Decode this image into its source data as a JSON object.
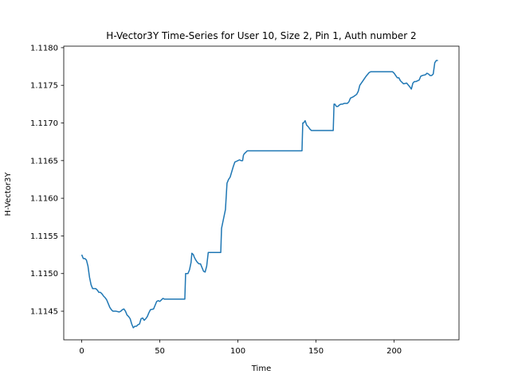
{
  "chart_data": {
    "type": "line",
    "title": "H-Vector3Y Time-Series for User 10, Size 2, Pin 1, Auth number 2",
    "xlabel": "Time",
    "ylabel": "H-Vector3Y",
    "xlim": [
      -11.5,
      241.5
    ],
    "ylim": [
      1.11412,
      1.11802
    ],
    "xticks": [
      0,
      50,
      100,
      150,
      200
    ],
    "yticks": [
      1.1145,
      1.115,
      1.1155,
      1.116,
      1.1165,
      1.117,
      1.1175,
      1.118
    ],
    "ytick_labels": [
      "1.1145",
      "1.1150",
      "1.1155",
      "1.1160",
      "1.1165",
      "1.1170",
      "1.1175",
      "1.1180"
    ],
    "grid": false,
    "series": [
      {
        "color": "#1f77b4",
        "points": [
          [
            0,
            1.11525
          ],
          [
            1,
            1.1152
          ],
          [
            2,
            1.1152
          ],
          [
            3,
            1.11518
          ],
          [
            4,
            1.1151
          ],
          [
            5,
            1.11495
          ],
          [
            6,
            1.11485
          ],
          [
            7,
            1.1148
          ],
          [
            8,
            1.1148
          ],
          [
            9,
            1.1148
          ],
          [
            10,
            1.11478
          ],
          [
            11,
            1.11475
          ],
          [
            12,
            1.11475
          ],
          [
            13,
            1.11473
          ],
          [
            14,
            1.1147
          ],
          [
            15,
            1.11468
          ],
          [
            16,
            1.11465
          ],
          [
            17,
            1.1146
          ],
          [
            18,
            1.11455
          ],
          [
            19,
            1.11452
          ],
          [
            20,
            1.1145
          ],
          [
            22,
            1.1145
          ],
          [
            24,
            1.11449
          ],
          [
            25,
            1.1145
          ],
          [
            26,
            1.11452
          ],
          [
            27,
            1.11453
          ],
          [
            28,
            1.1145
          ],
          [
            29,
            1.11445
          ],
          [
            30,
            1.11443
          ],
          [
            31,
            1.1144
          ],
          [
            32,
            1.11433
          ],
          [
            33,
            1.11428
          ],
          [
            34,
            1.1143
          ],
          [
            35,
            1.1143
          ],
          [
            36,
            1.11432
          ],
          [
            37,
            1.11433
          ],
          [
            38,
            1.1144
          ],
          [
            39,
            1.11441
          ],
          [
            40,
            1.11438
          ],
          [
            41,
            1.1144
          ],
          [
            42,
            1.11443
          ],
          [
            43,
            1.11448
          ],
          [
            44,
            1.11452
          ],
          [
            46,
            1.11453
          ],
          [
            47,
            1.11458
          ],
          [
            48,
            1.11463
          ],
          [
            49,
            1.11464
          ],
          [
            50,
            1.11463
          ],
          [
            51,
            1.11465
          ],
          [
            52,
            1.11467
          ],
          [
            53,
            1.11466
          ],
          [
            55,
            1.11466
          ],
          [
            60,
            1.11466
          ],
          [
            66,
            1.11466
          ],
          [
            66.5,
            1.115
          ],
          [
            68,
            1.115
          ],
          [
            69,
            1.11505
          ],
          [
            70,
            1.11515
          ],
          [
            70.5,
            1.11527
          ],
          [
            71.5,
            1.11525
          ],
          [
            72,
            1.11522
          ],
          [
            73,
            1.11518
          ],
          [
            74,
            1.11515
          ],
          [
            75,
            1.11513
          ],
          [
            76,
            1.11513
          ],
          [
            77,
            1.11508
          ],
          [
            78,
            1.11503
          ],
          [
            79,
            1.11502
          ],
          [
            80,
            1.1151
          ],
          [
            81,
            1.11528
          ],
          [
            82,
            1.11528
          ],
          [
            85,
            1.11528
          ],
          [
            89,
            1.11528
          ],
          [
            89.5,
            1.1156
          ],
          [
            91,
            1.11575
          ],
          [
            92,
            1.11585
          ],
          [
            93,
            1.1162
          ],
          [
            94,
            1.11625
          ],
          [
            95,
            1.11628
          ],
          [
            96,
            1.11635
          ],
          [
            97,
            1.11642
          ],
          [
            98,
            1.11648
          ],
          [
            99,
            1.11649
          ],
          [
            100,
            1.1165
          ],
          [
            101,
            1.11651
          ],
          [
            102,
            1.1165
          ],
          [
            103,
            1.1165
          ],
          [
            103.5,
            1.11657
          ],
          [
            104,
            1.11659
          ],
          [
            105,
            1.11661
          ],
          [
            106,
            1.11663
          ],
          [
            110,
            1.11663
          ],
          [
            120,
            1.11663
          ],
          [
            130,
            1.11663
          ],
          [
            140,
            1.11663
          ],
          [
            141,
            1.11663
          ],
          [
            141.5,
            1.117
          ],
          [
            142,
            1.117
          ],
          [
            143,
            1.11703
          ],
          [
            144,
            1.11697
          ],
          [
            145,
            1.11695
          ],
          [
            146,
            1.11692
          ],
          [
            147,
            1.1169
          ],
          [
            150,
            1.1169
          ],
          [
            160,
            1.1169
          ],
          [
            161,
            1.1169
          ],
          [
            161.5,
            1.11725
          ],
          [
            162,
            1.11725
          ],
          [
            163,
            1.11722
          ],
          [
            164,
            1.11722
          ],
          [
            165,
            1.11724
          ],
          [
            166,
            1.11725
          ],
          [
            167,
            1.11725
          ],
          [
            168,
            1.11726
          ],
          [
            170,
            1.11726
          ],
          [
            171,
            1.11728
          ],
          [
            172,
            1.11733
          ],
          [
            174,
            1.11735
          ],
          [
            176,
            1.11738
          ],
          [
            177,
            1.11742
          ],
          [
            178,
            1.1175
          ],
          [
            180,
            1.11756
          ],
          [
            182,
            1.11762
          ],
          [
            184,
            1.11767
          ],
          [
            185,
            1.11768
          ],
          [
            190,
            1.11768
          ],
          [
            195,
            1.11768
          ],
          [
            199,
            1.11768
          ],
          [
            200,
            1.11766
          ],
          [
            201,
            1.11763
          ],
          [
            202,
            1.1176
          ],
          [
            203,
            1.1176
          ],
          [
            204,
            1.11756
          ],
          [
            206,
            1.11752
          ],
          [
            208,
            1.11753
          ],
          [
            210,
            1.11748
          ],
          [
            211,
            1.11745
          ],
          [
            212,
            1.11753
          ],
          [
            213,
            1.11755
          ],
          [
            214,
            1.11755
          ],
          [
            216,
            1.11757
          ],
          [
            217,
            1.11762
          ],
          [
            218,
            1.11763
          ],
          [
            220,
            1.11764
          ],
          [
            221,
            1.11766
          ],
          [
            222,
            1.11765
          ],
          [
            223,
            1.11763
          ],
          [
            224,
            1.11763
          ],
          [
            225,
            1.11765
          ],
          [
            226,
            1.1178
          ],
          [
            227,
            1.11783
          ],
          [
            228,
            1.11783
          ]
        ]
      }
    ]
  }
}
